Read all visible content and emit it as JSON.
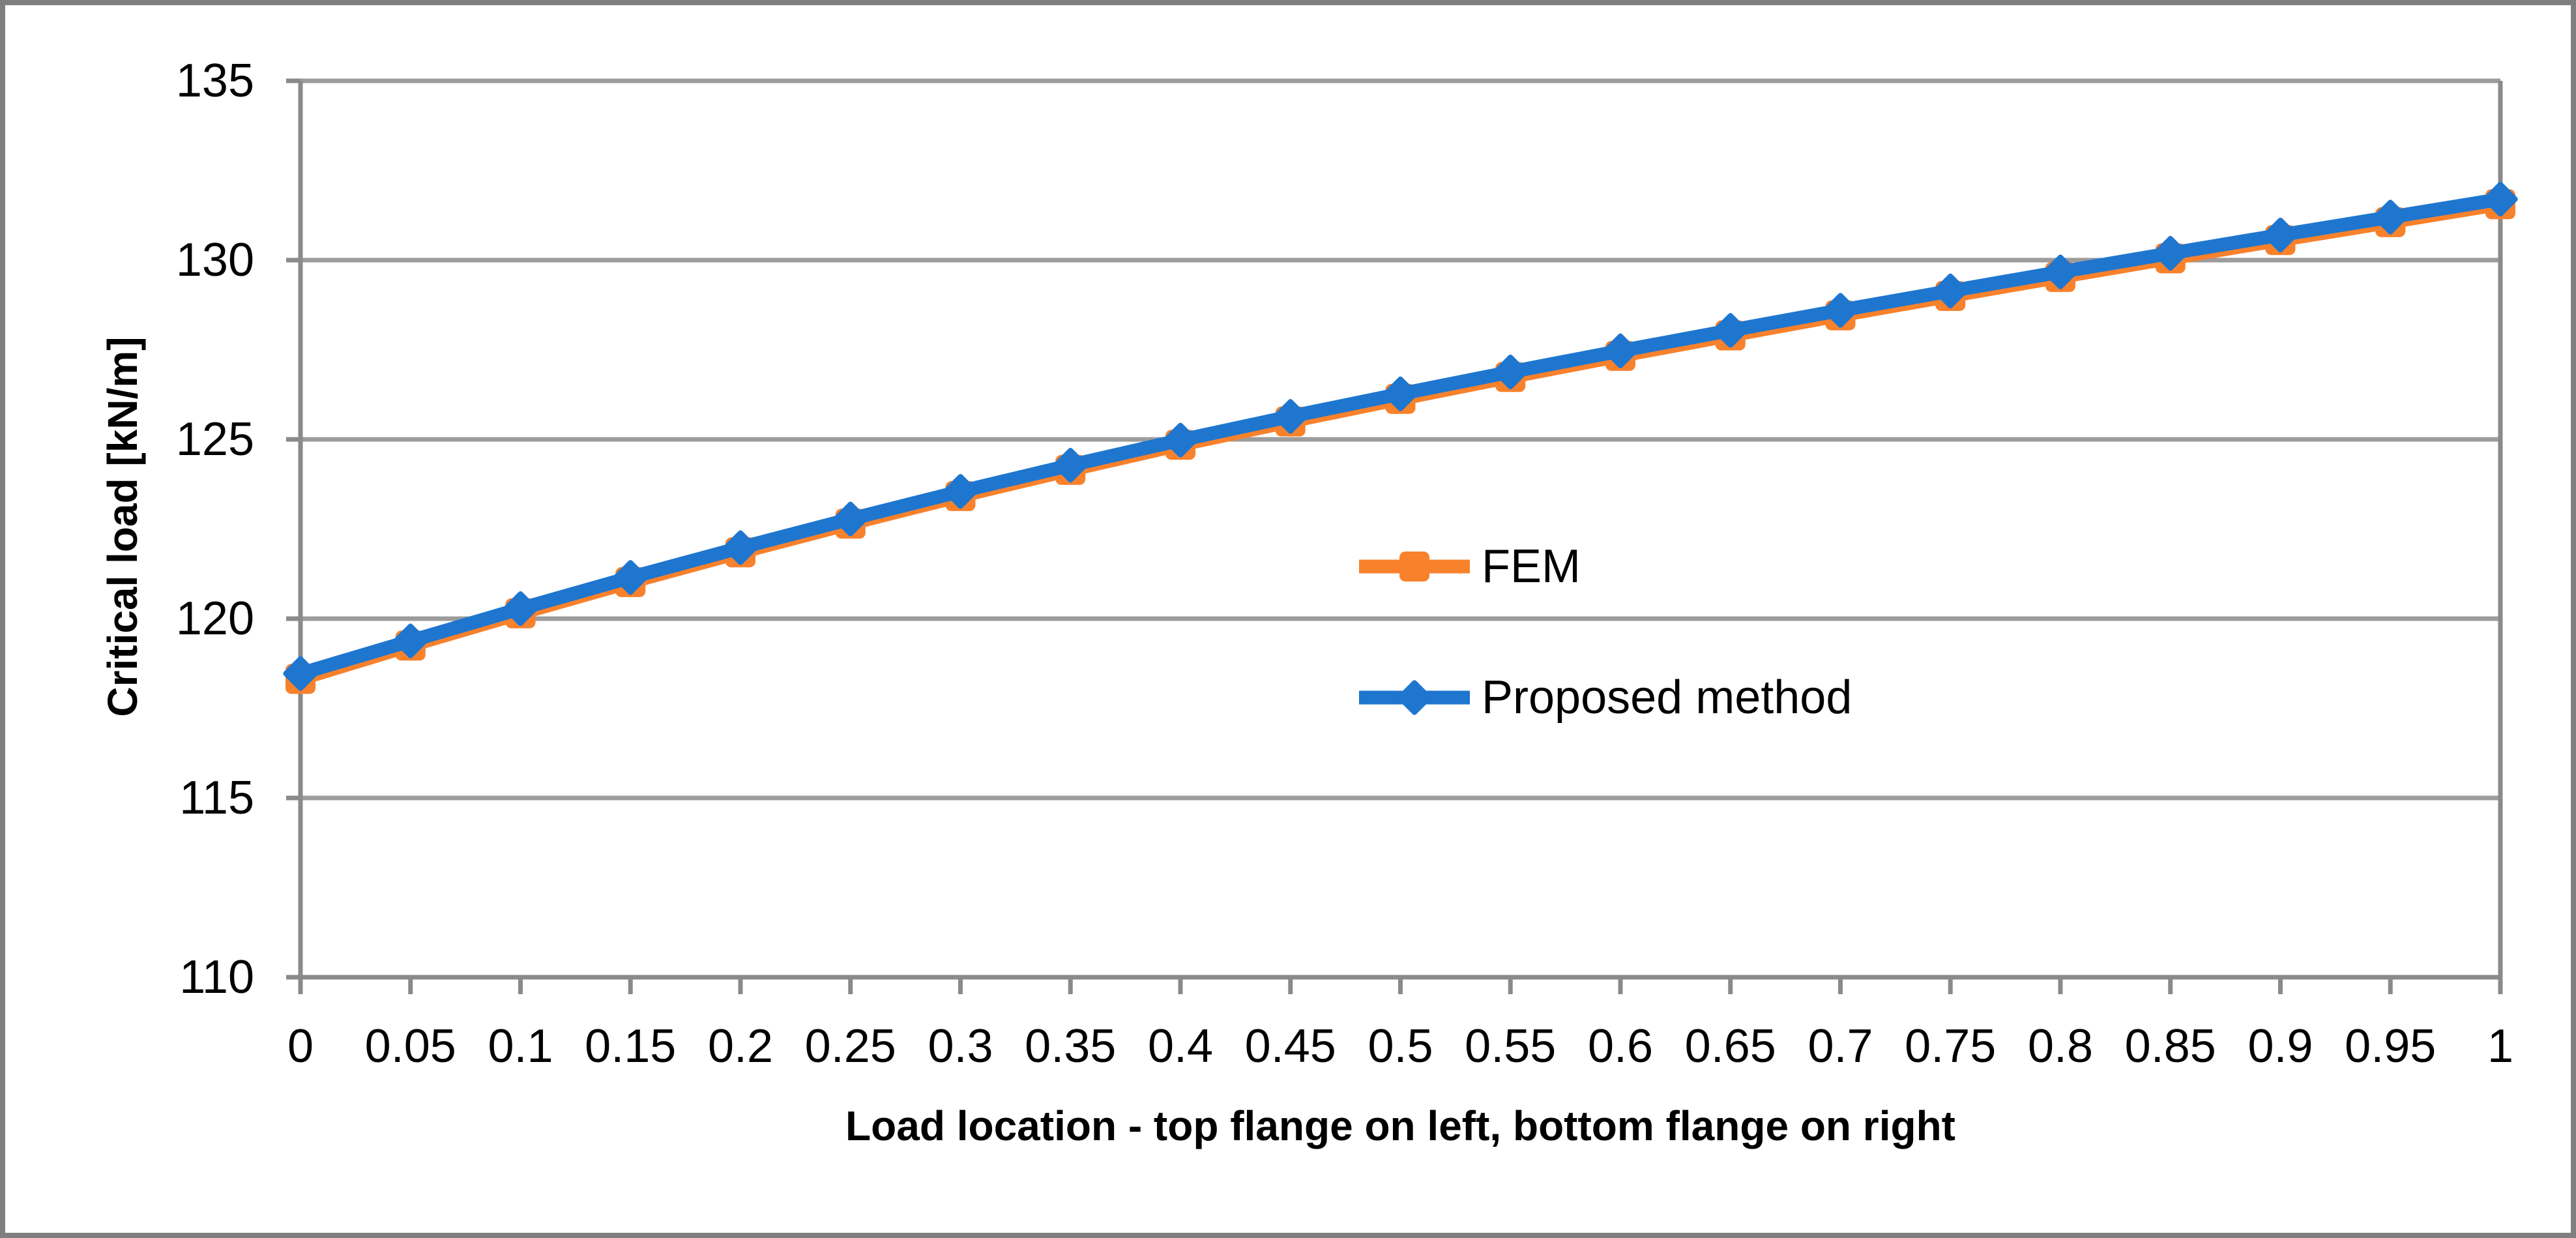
{
  "chart_data": {
    "type": "line",
    "title": "",
    "xlabel": "Load location - top flange on left, bottom flange on right",
    "ylabel": "Critical load [kN/m]",
    "x": [
      0,
      0.05,
      0.1,
      0.15,
      0.2,
      0.25,
      0.3,
      0.35,
      0.4,
      0.45,
      0.5,
      0.55,
      0.6,
      0.65,
      0.7,
      0.75,
      0.8,
      0.85,
      0.9,
      0.95,
      1
    ],
    "xtick_labels": [
      "0",
      "0.05",
      "0.1",
      "0.15",
      "0.2",
      "0.25",
      "0.3",
      "0.35",
      "0.4",
      "0.45",
      "0.5",
      "0.55",
      "0.6",
      "0.65",
      "0.7",
      "0.75",
      "0.8",
      "0.85",
      "0.9",
      "0.95",
      "1"
    ],
    "yticks": [
      110,
      115,
      120,
      125,
      130,
      135
    ],
    "ytick_labels": [
      "110",
      "115",
      "120",
      "125",
      "130",
      "135"
    ],
    "xlim": [
      0,
      1
    ],
    "ylim": [
      110,
      135
    ],
    "grid": true,
    "legend_position": "inside-center",
    "series": [
      {
        "name": "FEM",
        "color": "#F8812C",
        "marker": "square",
        "values": [
          118.32,
          119.25,
          120.15,
          121.02,
          121.85,
          122.65,
          123.42,
          124.15,
          124.85,
          125.5,
          126.13,
          126.74,
          127.33,
          127.9,
          128.46,
          129.0,
          129.53,
          130.05,
          130.56,
          131.06,
          131.56
        ]
      },
      {
        "name": "Proposed method",
        "color": "#1E76CF",
        "marker": "diamond",
        "values": [
          118.47,
          119.38,
          120.28,
          121.15,
          121.98,
          122.78,
          123.55,
          124.28,
          124.98,
          125.64,
          126.27,
          126.88,
          127.47,
          128.04,
          128.6,
          129.14,
          129.67,
          130.19,
          130.7,
          131.2,
          131.7
        ]
      }
    ],
    "colors": {
      "gridline": "#9C9C9C",
      "axis": "#8A8A8A",
      "figure_border": "#7F7F7F",
      "text": "#000000",
      "background": "#FFFFFF"
    }
  }
}
